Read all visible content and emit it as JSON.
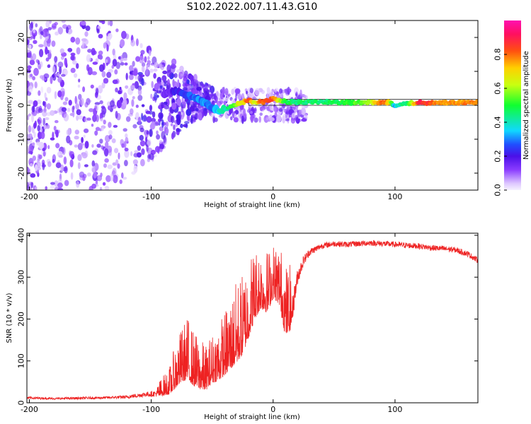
{
  "title": "S102.2022.007.11.43.G10",
  "chart_data": [
    {
      "type": "heatmap",
      "title": "S102.2022.007.11.43.G10",
      "xlabel": "Height of straight line (km)",
      "ylabel": "Frequency (Hz)",
      "xlim": [
        -202,
        168
      ],
      "ylim": [
        -25,
        25
      ],
      "x_ticks": [
        -200,
        -100,
        0,
        100
      ],
      "x_tick_labels": [
        "-200",
        "-100",
        "0",
        "100"
      ],
      "y_ticks": [
        -20,
        -10,
        0,
        10,
        20
      ],
      "y_tick_labels": [
        "-20",
        "-10",
        "0",
        "10",
        "20"
      ],
      "colorbar": {
        "label": "Normalized spectral amplitude",
        "range": [
          0,
          1
        ],
        "ticks": [
          0.0,
          0.2,
          0.4,
          0.6,
          0.8
        ],
        "tick_labels": [
          "0.0",
          "0.2",
          "0.4",
          "0.6",
          "0.8"
        ]
      },
      "signal_track": {
        "heights_km": [
          -90,
          -80,
          -70,
          -60,
          -55,
          -50,
          -45,
          -40,
          -35,
          -30,
          -25,
          -20,
          -15,
          -10,
          -5,
          0,
          10,
          20,
          40,
          60,
          80,
          90,
          95,
          100,
          105,
          110,
          120,
          140,
          168
        ],
        "frequency_hz": [
          3.5,
          4.0,
          3.0,
          1.5,
          0.5,
          -0.8,
          -1.5,
          -1.2,
          -0.5,
          0.2,
          0.8,
          1.5,
          0.8,
          1.0,
          1.2,
          2.0,
          1.0,
          1.0,
          1.0,
          0.8,
          0.8,
          0.8,
          1.0,
          0.0,
          0.5,
          0.5,
          0.8,
          0.8,
          0.8
        ],
        "normalized_amplitude": [
          0.15,
          0.2,
          0.25,
          0.3,
          0.3,
          0.3,
          0.35,
          0.4,
          0.5,
          0.6,
          0.7,
          0.85,
          0.6,
          0.8,
          0.85,
          0.8,
          0.5,
          0.45,
          0.45,
          0.5,
          0.6,
          0.85,
          0.7,
          0.3,
          0.45,
          0.45,
          0.9,
          0.75,
          0.8
        ]
      },
      "model_band_hz": [
        0.0,
        1.8
      ]
    },
    {
      "type": "line",
      "xlabel": "Height of straight line (km)",
      "ylabel": "SNR (10 * v/v)",
      "xlim": [
        -202,
        168
      ],
      "ylim": [
        0,
        405
      ],
      "x_ticks": [
        -200,
        -100,
        0,
        100
      ],
      "x_tick_labels": [
        "-200",
        "-100",
        "0",
        "100"
      ],
      "y_ticks": [
        0,
        100,
        200,
        300,
        400
      ],
      "y_tick_labels": [
        "0",
        "100",
        "200",
        "300",
        "400"
      ],
      "series": [
        {
          "name": "SNR",
          "color": "#ee2222",
          "x": [
            -202,
            -180,
            -160,
            -140,
            -120,
            -105,
            -95,
            -85,
            -80,
            -75,
            -70,
            -65,
            -60,
            -55,
            -50,
            -45,
            -40,
            -35,
            -30,
            -25,
            -20,
            -15,
            -10,
            -5,
            0,
            5,
            10,
            15,
            20,
            25,
            30,
            40,
            50,
            60,
            70,
            80,
            90,
            100,
            110,
            120,
            130,
            140,
            150,
            160,
            168
          ],
          "y": [
            12,
            10,
            11,
            12,
            14,
            20,
            22,
            35,
            60,
            80,
            90,
            70,
            60,
            55,
            75,
            85,
            100,
            120,
            140,
            160,
            200,
            240,
            260,
            250,
            280,
            270,
            200,
            210,
            300,
            340,
            360,
            375,
            380,
            378,
            380,
            382,
            380,
            378,
            376,
            374,
            370,
            368,
            365,
            355,
            340
          ],
          "noise_amplitude": [
            6,
            5,
            6,
            6,
            8,
            12,
            15,
            30,
            50,
            60,
            70,
            60,
            55,
            50,
            55,
            65,
            70,
            80,
            90,
            90,
            90,
            80,
            70,
            70,
            60,
            70,
            80,
            70,
            40,
            25,
            18,
            14,
            14,
            14,
            14,
            14,
            14,
            14,
            14,
            14,
            14,
            14,
            14,
            14,
            14
          ]
        }
      ]
    }
  ]
}
